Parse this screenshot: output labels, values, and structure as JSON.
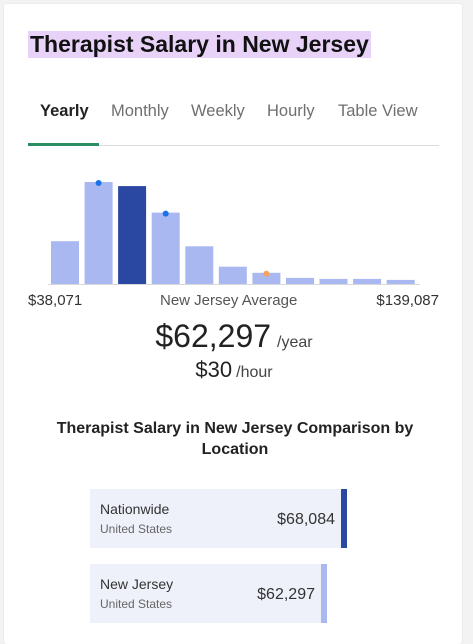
{
  "title": "Therapist Salary in New Jersey",
  "tabs": [
    {
      "label": "Yearly",
      "active": true
    },
    {
      "label": "Monthly",
      "active": false
    },
    {
      "label": "Weekly",
      "active": false
    },
    {
      "label": "Hourly",
      "active": false
    },
    {
      "label": "Table View",
      "active": false
    }
  ],
  "histogram": {
    "relative_heights": [
      0.42,
      1.0,
      0.96,
      0.7,
      0.37,
      0.17,
      0.11,
      0.06,
      0.05,
      0.05,
      0.04
    ],
    "highlighted_index": 2,
    "markers": [
      {
        "bar": 1,
        "color": "#1a73e8"
      },
      {
        "bar": 3,
        "color": "#1a73e8"
      },
      {
        "bar": 6,
        "color": "#f5a25d"
      }
    ],
    "range_min": "$38,071",
    "range_label": "New Jersey Average",
    "range_max": "$139,087"
  },
  "average": {
    "yearly": "$62,297",
    "yearly_unit": "/year",
    "hourly": "$30",
    "hourly_unit": "/hour"
  },
  "comparison": {
    "title": "Therapist Salary in New Jersey Comparison by Location",
    "rows": [
      {
        "location": "Nationwide",
        "sub": "United States",
        "value": "$68,084",
        "bar_color": "#2a47a2"
      },
      {
        "location": "New Jersey",
        "sub": "United States",
        "value": "$62,297",
        "bar_color": "#a9b8f0"
      }
    ]
  },
  "colors": {
    "bar": "#a9b8f0",
    "bar_highlight": "#2a47a2",
    "accent": "#2a8e63",
    "title_highlight": "#e8d2f8"
  }
}
